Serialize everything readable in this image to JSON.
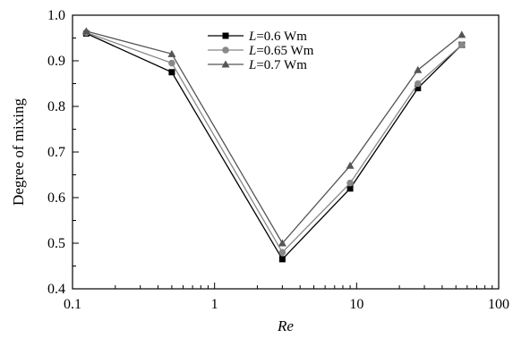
{
  "chart_data": {
    "type": "line",
    "xlabel": "Re",
    "ylabel": "Degree of mixing",
    "xscale": "log",
    "xlim": [
      0.1,
      100
    ],
    "ylim": [
      0.4,
      1.0
    ],
    "xticks": [
      0.1,
      1,
      10,
      100
    ],
    "xtick_labels": [
      "0.1",
      "1",
      "10",
      "100"
    ],
    "yticks": [
      0.4,
      0.5,
      0.6,
      0.7,
      0.8,
      0.9,
      1.0
    ],
    "ytick_labels": [
      "0.4",
      "0.5",
      "0.6",
      "0.7",
      "0.8",
      "0.9",
      "1.0"
    ],
    "grid": false,
    "legend_position": "top-center",
    "series": [
      {
        "name_var": "L",
        "name_rest": "=0.6 Wm",
        "marker": "square",
        "color": "#000000",
        "x": [
          0.125,
          0.5,
          3,
          9,
          27,
          55
        ],
        "y": [
          0.96,
          0.875,
          0.465,
          0.62,
          0.84,
          0.935
        ]
      },
      {
        "name_var": "L",
        "name_rest": "=0.65 Wm",
        "marker": "circle",
        "color": "#888888",
        "x": [
          0.125,
          0.5,
          3,
          9,
          27,
          55
        ],
        "y": [
          0.962,
          0.895,
          0.48,
          0.632,
          0.85,
          0.935
        ]
      },
      {
        "name_var": "L",
        "name_rest": "=0.7 Wm",
        "marker": "triangle",
        "color": "#555555",
        "x": [
          0.125,
          0.5,
          3,
          9,
          27,
          55
        ],
        "y": [
          0.965,
          0.915,
          0.5,
          0.67,
          0.88,
          0.957
        ]
      }
    ]
  }
}
